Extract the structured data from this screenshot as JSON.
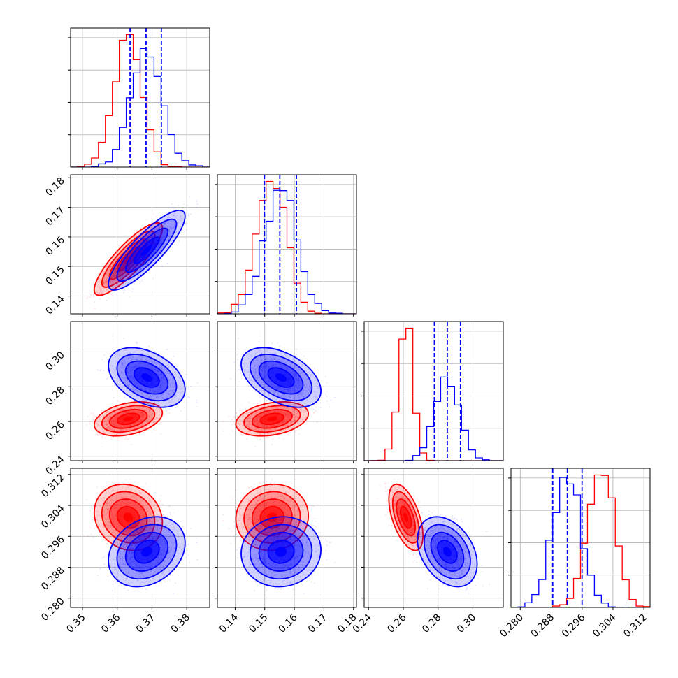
{
  "chart_data": {
    "type": "corner",
    "grid": true,
    "series": [
      {
        "name": "",
        "color": "#ff0000",
        "mean": [
          0.3632,
          0.1525,
          0.2615,
          0.3009
        ],
        "std": [
          0.004,
          0.005,
          0.004,
          0.0035
        ],
        "corr": [
          [
            1.0,
            0.85,
            0.35,
            -0.15
          ],
          [
            0.85,
            1.0,
            0.3,
            0.05
          ],
          [
            0.35,
            0.3,
            1.0,
            -0.55
          ],
          [
            -0.15,
            0.05,
            -0.55,
            1.0
          ]
        ]
      },
      {
        "name": "",
        "color": "#0000ff",
        "mean": [
          0.3685,
          0.1555,
          0.2853,
          0.292
        ],
        "std": [
          0.0045,
          0.0055,
          0.007,
          0.0037
        ],
        "corr": [
          [
            1.0,
            0.85,
            -0.4,
            0.25
          ],
          [
            0.85,
            1.0,
            -0.45,
            0.05
          ],
          [
            -0.4,
            -0.45,
            1.0,
            -0.35
          ],
          [
            0.25,
            0.05,
            -0.35,
            1.0
          ]
        ]
      }
    ],
    "quantile_lines": {
      "color": "#0000ff",
      "values": [
        [
          0.3637,
          0.3683,
          0.3727
        ],
        [
          0.1499,
          0.1551,
          0.1607
        ],
        [
          0.2779,
          0.2853,
          0.2929
        ],
        [
          0.2884,
          0.2922,
          0.296
        ]
      ]
    },
    "parameters": [
      {
        "range": [
          0.3466,
          0.3866
        ],
        "ticks": [
          "0.35",
          "0.36",
          "0.37",
          "0.38"
        ]
      },
      {
        "range": [
          0.134,
          0.181
        ],
        "ticks": [
          "0.14",
          "0.15",
          "0.16",
          "0.17",
          "0.18"
        ]
      },
      {
        "range": [
          0.2375,
          0.3175
        ],
        "ticks": [
          "0.24",
          "0.26",
          "0.28",
          "0.30"
        ]
      },
      {
        "range": [
          0.2776,
          0.3136
        ],
        "ticks": [
          "0.280",
          "0.288",
          "0.296",
          "0.304",
          "0.312"
        ]
      }
    ]
  }
}
